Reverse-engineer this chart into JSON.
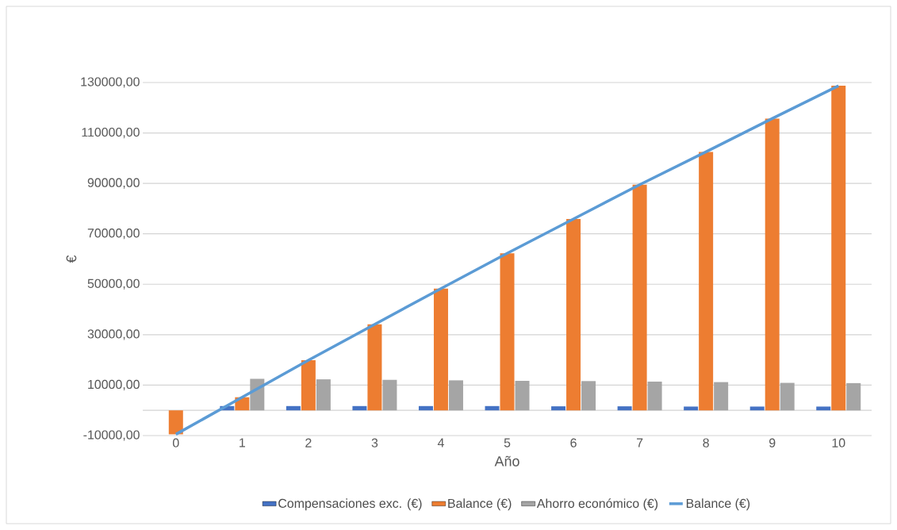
{
  "chart_data": {
    "type": "bar",
    "xlabel": "Año",
    "ylabel": "€",
    "categories": [
      "0",
      "1",
      "2",
      "3",
      "4",
      "5",
      "6",
      "7",
      "8",
      "9",
      "10"
    ],
    "series": [
      {
        "name": "Compensaciones exc. (€)",
        "color": "#4472c4",
        "values": [
          0,
          1700,
          1700,
          1700,
          1700,
          1700,
          1600,
          1600,
          1500,
          1500,
          1500
        ]
      },
      {
        "name": "Balance (€)",
        "color": "#ed7d31",
        "values": [
          -9500,
          5200,
          19900,
          34100,
          48300,
          62300,
          75900,
          89500,
          102500,
          115700,
          128700
        ]
      },
      {
        "name": "Ahorro económico (€)",
        "color": "#a5a5a5",
        "values": [
          0,
          12500,
          12300,
          12100,
          11900,
          11700,
          11600,
          11400,
          11200,
          10900,
          10800
        ]
      },
      {
        "name": "Balance (€)",
        "type": "line",
        "color": "#5b9bd5",
        "values": [
          -9500,
          5200,
          19900,
          34100,
          48300,
          62300,
          75900,
          89500,
          102500,
          115700,
          128700
        ]
      }
    ],
    "ylim": [
      -10000,
      130000
    ],
    "yticks": [
      {
        "value": -10000,
        "label": "-10000,00"
      },
      {
        "value": 0,
        "label": null
      },
      {
        "value": 10000,
        "label": "10000,00"
      },
      {
        "value": 30000,
        "label": "30000,00"
      },
      {
        "value": 50000,
        "label": "50000,00"
      },
      {
        "value": 70000,
        "label": "70000,00"
      },
      {
        "value": 90000,
        "label": "90000,00"
      },
      {
        "value": 110000,
        "label": "110000,00"
      },
      {
        "value": 130000,
        "label": "130000,00"
      }
    ],
    "grid": "y",
    "legend": "bottom"
  }
}
